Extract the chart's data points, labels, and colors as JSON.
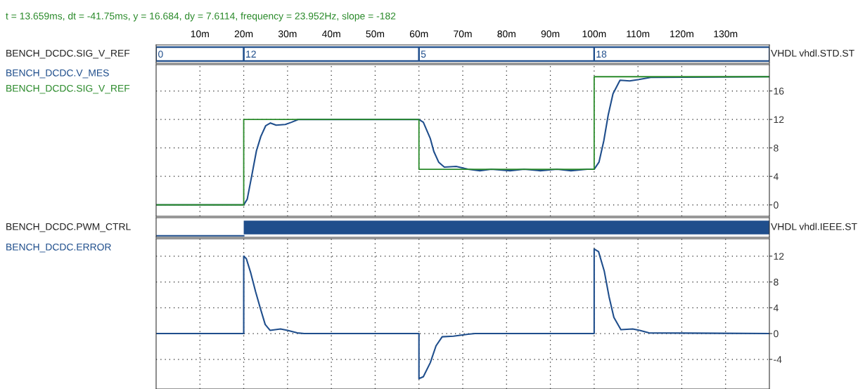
{
  "chart_data": [
    {
      "type": "other",
      "title": "t = 13.659ms, dt = -41.75ms, y = 16.684, dy = 7.6114, frequency = 23.952Hz, slope = -182",
      "ylabel": "BENCH_DCDC.SIG_V_REF",
      "annotations": [
        "0",
        "12",
        "5",
        "18",
        "VHDL vhdl.STD.ST"
      ]
    },
    {
      "type": "line",
      "xlim": [
        0,
        140
      ],
      "ylim": [
        -1.6,
        19.7
      ],
      "yticks": [
        0,
        4,
        8,
        12,
        16
      ],
      "grid": true,
      "xticks": [
        {
          "value": 10,
          "label": "10m"
        },
        {
          "value": 20,
          "label": "20m"
        },
        {
          "value": 30,
          "label": "30m"
        },
        {
          "value": 40,
          "label": "40m"
        },
        {
          "value": 50,
          "label": "50m"
        },
        {
          "value": 60,
          "label": "60m"
        },
        {
          "value": 70,
          "label": "70m"
        },
        {
          "value": 80,
          "label": "80m"
        },
        {
          "value": 90,
          "label": "90m"
        },
        {
          "value": 100,
          "label": "100m"
        },
        {
          "value": 110,
          "label": "110m"
        },
        {
          "value": 120,
          "label": "120m"
        },
        {
          "value": 130,
          "label": "130m"
        }
      ],
      "series": [
        {
          "name": "BENCH_DCDC.V_MES",
          "color": "#1f4e8c",
          "x": [
            0,
            20,
            20.8,
            21.8,
            22.9,
            23.9,
            25.0,
            26.1,
            27.4,
            29.5,
            30.9,
            32.5,
            60,
            61.0,
            62.6,
            63.4,
            64.5,
            65.8,
            68.5,
            71.2,
            73.9,
            76.5,
            80.8,
            84.0,
            87.7,
            91.5,
            94.7,
            98.4,
            100,
            101.1,
            102.2,
            103.2,
            104.3,
            105.9,
            108.1,
            110.2,
            112.9,
            140
          ],
          "values": [
            0,
            0,
            0.8,
            4.0,
            7.6,
            9.6,
            11.1,
            11.5,
            11.2,
            11.3,
            11.6,
            12,
            12,
            11.6,
            9.3,
            7.5,
            6.0,
            5.3,
            5.4,
            5.0,
            4.8,
            5.0,
            4.8,
            5.0,
            4.8,
            5.0,
            4.8,
            5.0,
            5.0,
            6.0,
            9.0,
            12.6,
            15.6,
            17.5,
            17.4,
            17.6,
            17.9,
            18
          ]
        },
        {
          "name": "BENCH_DCDC.SIG_V_REF",
          "type": "step",
          "color": "#2a8a2a",
          "x": [
            0,
            20,
            60,
            100,
            140
          ],
          "values": [
            0,
            12,
            5,
            18,
            18
          ]
        }
      ]
    },
    {
      "type": "other",
      "ylabel": "BENCH_DCDC.PWM_CTRL",
      "annotations": [
        "VHDL vhdl.IEEE.ST"
      ]
    },
    {
      "type": "line",
      "xlim": [
        0,
        140
      ],
      "ylim": [
        -8.6,
        14.7
      ],
      "yticks": [
        -4,
        0,
        4,
        8,
        12
      ],
      "grid": true,
      "tick_labels": "y",
      "xticks": [
        {
          "value": 10,
          "label": null
        },
        {
          "value": 20,
          "label": null
        },
        {
          "value": 30,
          "label": null
        },
        {
          "value": 40,
          "label": null
        },
        {
          "value": 50,
          "label": null
        },
        {
          "value": 60,
          "label": null
        },
        {
          "value": 70,
          "label": null
        },
        {
          "value": 80,
          "label": null
        },
        {
          "value": 90,
          "label": null
        },
        {
          "value": 100,
          "label": null
        },
        {
          "value": 110,
          "label": null
        },
        {
          "value": 120,
          "label": null
        },
        {
          "value": 130,
          "label": null
        }
      ],
      "series": [
        {
          "name": "BENCH_DCDC.ERROR",
          "color": "#1f4e8c",
          "x": [
            0,
            20,
            20,
            20.6,
            21.6,
            22.7,
            23.8,
            24.9,
            26.0,
            28.4,
            30.0,
            32.2,
            33.8,
            60,
            60,
            61.0,
            62.6,
            63.9,
            65.3,
            67.9,
            71.2,
            72.8,
            100,
            100,
            101.0,
            102.3,
            103.4,
            104.5,
            106.1,
            108.8,
            110.4,
            112.5,
            140
          ],
          "values": [
            0,
            0,
            12,
            11.6,
            9.4,
            6.5,
            3.9,
            1.4,
            0.5,
            0.7,
            0.5,
            0.1,
            0,
            0,
            -7.0,
            -6.7,
            -4.5,
            -1.9,
            -0.5,
            -0.4,
            -0.1,
            0,
            0,
            13.1,
            12.7,
            9.7,
            5.7,
            2.5,
            0.6,
            0.7,
            0.5,
            0.1,
            0
          ]
        }
      ]
    }
  ]
}
